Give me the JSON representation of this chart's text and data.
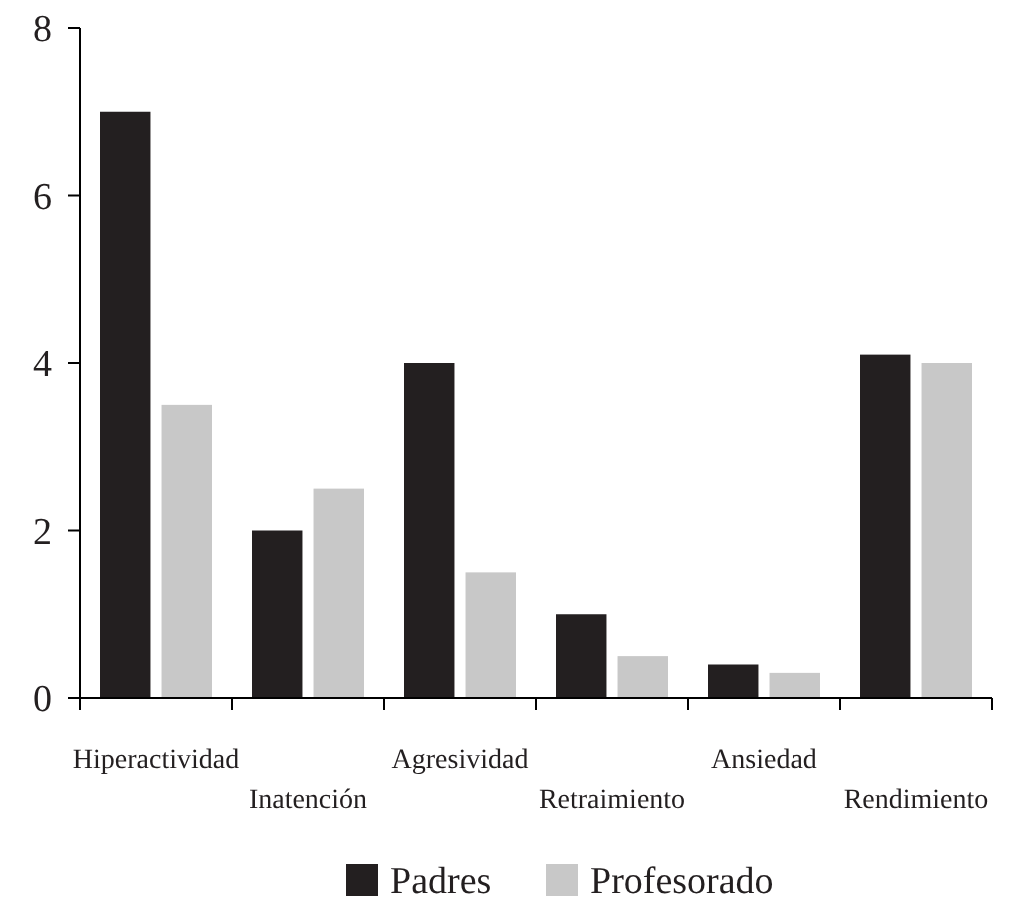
{
  "chart_data": {
    "type": "bar",
    "categories": [
      "Hiperactividad",
      "Inatención",
      "Agresividad",
      "Retraimiento",
      "Ansiedad",
      "Rendimiento"
    ],
    "series": [
      {
        "name": "Padres",
        "color": "#231f20",
        "values": [
          7,
          2,
          4,
          1,
          0.4,
          4.1
        ]
      },
      {
        "name": "Profesorado",
        "color": "#c8c8c8",
        "values": [
          3.5,
          2.5,
          1.5,
          0.5,
          0.3,
          4
        ]
      }
    ],
    "ylim": [
      0,
      8
    ],
    "yticks": [
      0,
      2,
      4,
      6,
      8
    ],
    "grid": false,
    "legend": "bottom"
  }
}
